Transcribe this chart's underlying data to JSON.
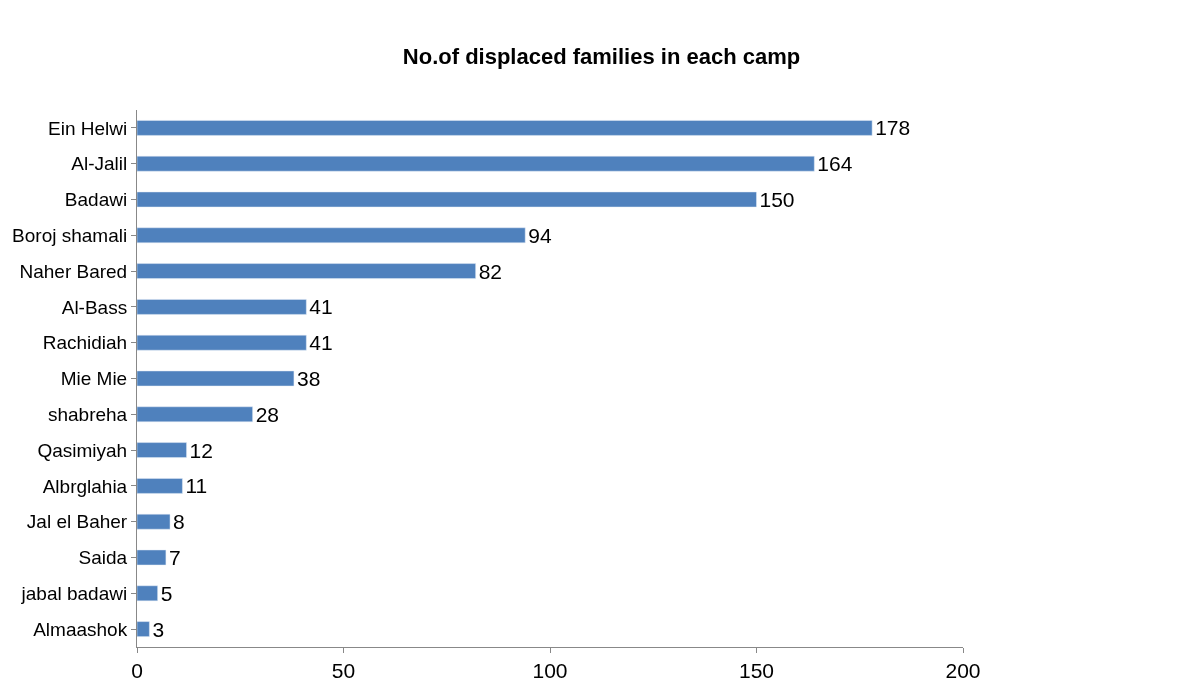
{
  "chart_data": {
    "type": "bar",
    "orientation": "horizontal",
    "title": "No.of displaced families in each camp",
    "categories": [
      "Ein Helwi",
      "Al-Jalil",
      "Badawi",
      "Boroj shamali",
      "Naher Bared",
      "Al-Bass",
      "Rachidiah",
      "Mie Mie",
      "shabreha",
      "Qasimiyah",
      "Albrglahia",
      "Jal el Baher",
      "Saida",
      "jabal badawi",
      "Almaashok"
    ],
    "values": [
      178,
      164,
      150,
      94,
      82,
      41,
      41,
      38,
      28,
      12,
      11,
      8,
      7,
      5,
      3
    ],
    "color": "#4f81bd",
    "data_labels": true,
    "xlim": [
      0,
      200
    ],
    "xticks": [
      0,
      50,
      100,
      150,
      200
    ]
  }
}
